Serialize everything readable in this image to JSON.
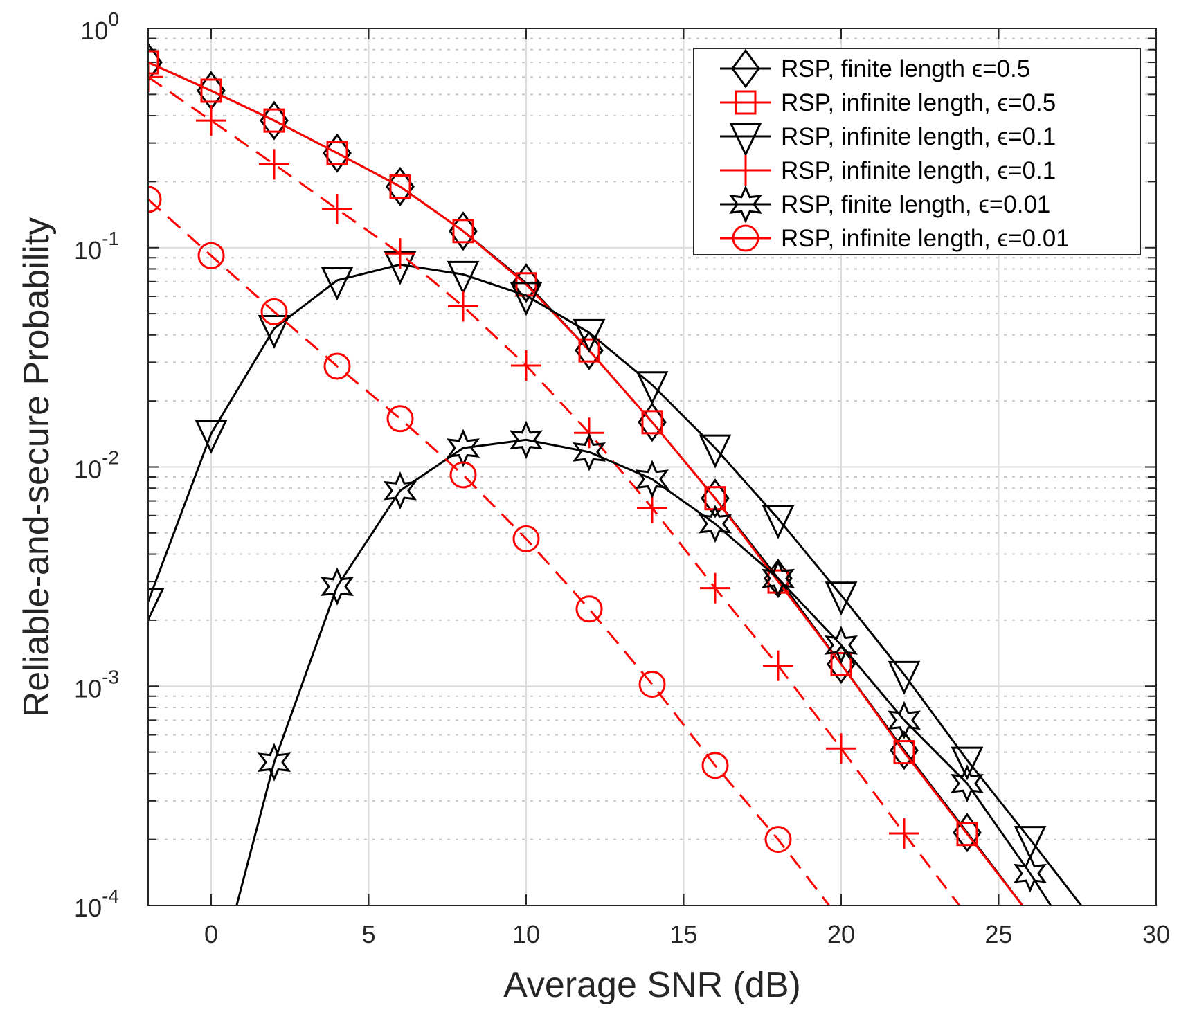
{
  "chart_data": {
    "type": "line",
    "xlabel": "Average SNR (dB)",
    "ylabel": "Reliable-and-secure Probability",
    "xlim": [
      -2,
      30
    ],
    "ylim": [
      0.0001,
      1
    ],
    "yscale": "log",
    "grid": true,
    "legend_placement": "top-right",
    "xticks": [
      "0",
      "5",
      "10",
      "15",
      "20",
      "25",
      "30"
    ],
    "xtick_values": [
      0,
      5,
      10,
      15,
      20,
      25,
      30
    ],
    "yticks": [
      {
        "base": "10",
        "exp": "0"
      },
      {
        "base": "10",
        "exp": "-1"
      },
      {
        "base": "10",
        "exp": "-2"
      },
      {
        "base": "10",
        "exp": "-3"
      },
      {
        "base": "10",
        "exp": "-4"
      }
    ],
    "ytick_values": [
      1,
      0.1,
      0.01,
      0.001,
      0.0001
    ],
    "series": [
      {
        "name": "RSP, finite length ϵ=0.5",
        "color": "#000000",
        "dash": "solid",
        "marker": "diamond",
        "x": [
          -2,
          0,
          2,
          4,
          6,
          8,
          10,
          12,
          14,
          16,
          18,
          20,
          22,
          24,
          26
        ],
        "y": [
          0.7,
          0.52,
          0.38,
          0.27,
          0.19,
          0.119,
          0.069,
          0.034,
          0.016,
          0.0072,
          0.0031,
          0.00126,
          0.00051,
          0.000215,
          9e-05
        ]
      },
      {
        "name": "RSP, infinite length, ϵ=0.5",
        "color": "#ff0000",
        "dash": "solid",
        "marker": "square",
        "x": [
          -2,
          0,
          2,
          4,
          6,
          8,
          10,
          12,
          14,
          16,
          18,
          20,
          22,
          24,
          26
        ],
        "y": [
          0.7,
          0.52,
          0.38,
          0.27,
          0.19,
          0.119,
          0.068,
          0.034,
          0.016,
          0.0072,
          0.003,
          0.00126,
          0.0005,
          0.000212,
          9e-05
        ]
      },
      {
        "name": "RSP, infinite length, ϵ=0.1",
        "color": "#000000",
        "dash": "solid",
        "marker": "triangle-down",
        "x": [
          -2,
          0,
          2,
          4,
          6,
          8,
          10,
          12,
          14,
          16,
          18,
          20,
          22,
          24,
          26,
          28
        ],
        "y": [
          0.00243,
          0.0142,
          0.0428,
          0.071,
          0.0837,
          0.0755,
          0.0605,
          0.041,
          0.0237,
          0.0122,
          0.0058,
          0.0026,
          0.00113,
          0.00046,
          0.0002,
          8.5e-05
        ]
      },
      {
        "name": "RSP, infinite length, ϵ=0.1",
        "color": "#ff0000",
        "dash": "dashed",
        "marker": "plus",
        "x": [
          -2,
          0,
          2,
          4,
          6,
          8,
          10,
          12,
          14,
          16,
          18,
          20,
          22,
          24
        ],
        "y": [
          0.6,
          0.38,
          0.24,
          0.15,
          0.094,
          0.054,
          0.029,
          0.0143,
          0.0065,
          0.0028,
          0.00124,
          0.00052,
          0.000213,
          9e-05
        ]
      },
      {
        "name": "RSP, finite length, ϵ=0.01",
        "color": "#000000",
        "dash": "solid",
        "marker": "hexagram",
        "x": [
          0,
          2,
          4,
          6,
          8,
          10,
          12,
          14,
          16,
          18,
          20,
          22,
          24,
          26,
          28
        ],
        "y": [
          3.6e-05,
          0.00045,
          0.00285,
          0.0078,
          0.0122,
          0.0133,
          0.0117,
          0.0088,
          0.0055,
          0.0031,
          0.00154,
          0.0007,
          0.00036,
          0.00014,
          5e-05
        ]
      },
      {
        "name": "RSP, infinite length, ϵ=0.01",
        "color": "#ff0000",
        "dash": "dashed",
        "marker": "circle",
        "x": [
          -2,
          0,
          2,
          4,
          6,
          8,
          10,
          12,
          14,
          16,
          18,
          20
        ],
        "y": [
          0.166,
          0.092,
          0.051,
          0.0288,
          0.0166,
          0.0092,
          0.0047,
          0.00225,
          0.00102,
          0.000435,
          0.0002,
          8.5e-05
        ]
      }
    ]
  }
}
